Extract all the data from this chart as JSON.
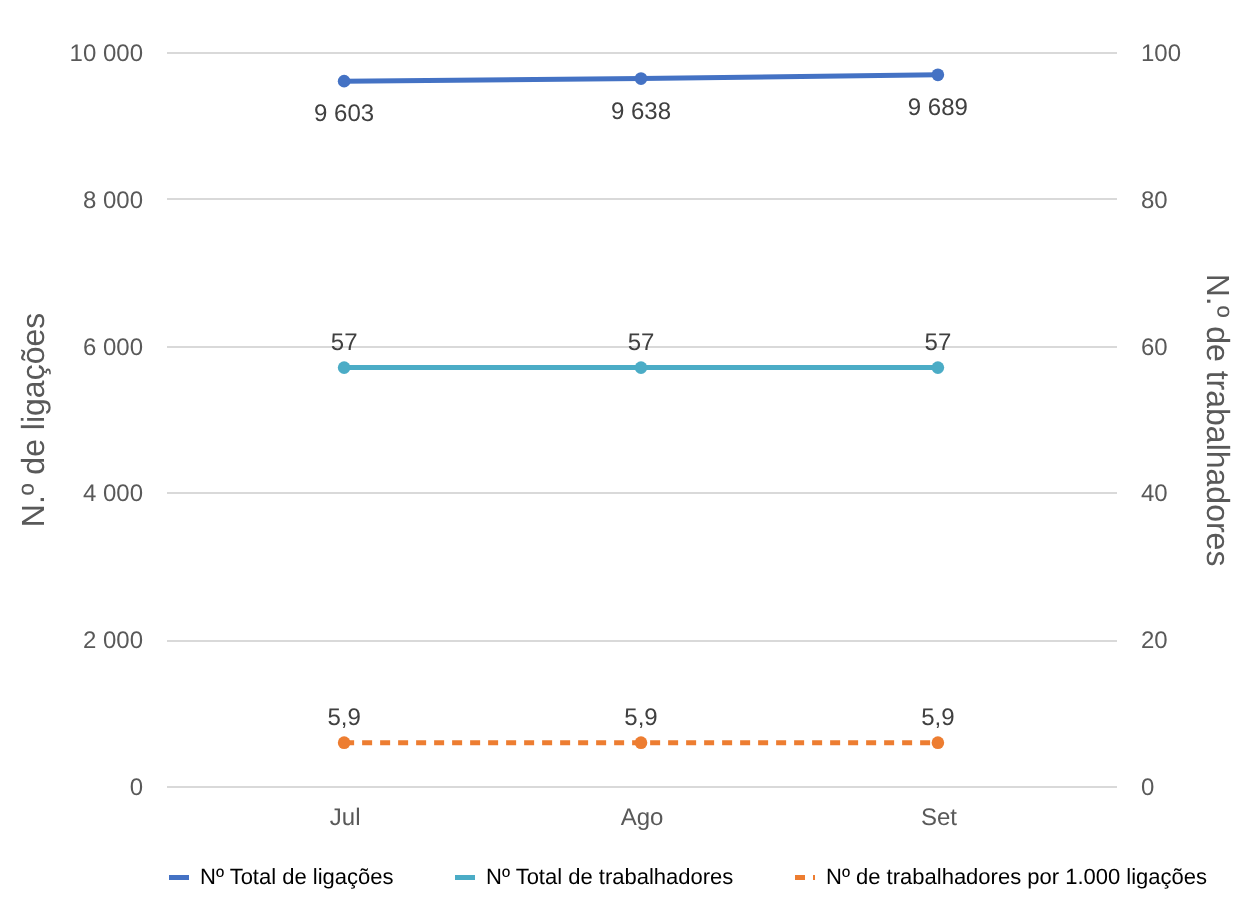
{
  "chart_data": {
    "type": "line",
    "categories": [
      "Jul",
      "Ago",
      "Set"
    ],
    "ylabel": "N.º de ligações",
    "y2label": "N.º de trabalhadores",
    "ylim": [
      0,
      10000
    ],
    "yticks": [
      0,
      {
        "value": 2000,
        "label": "2 000"
      },
      {
        "value": 4000,
        "label": "4 000"
      },
      {
        "value": 6000,
        "label": "6 000"
      },
      {
        "value": 8000,
        "label": "8 000"
      },
      {
        "value": 10000,
        "label": "10 000"
      }
    ],
    "y2lim": [
      0,
      100
    ],
    "y2ticks": [
      0,
      20,
      40,
      60,
      80,
      100
    ],
    "grid": "y",
    "legend": "bottom",
    "marker": "circle",
    "series": [
      {
        "name": "Nº Total de ligações",
        "color": "#4472c4",
        "values": [
          9603,
          9638,
          9689
        ],
        "value_labels": [
          "9 603",
          "9 638",
          "9 689"
        ],
        "line_style": "solid"
      },
      {
        "name": "Nº Total de trabalhadores",
        "color": "#4bacc6",
        "values": [
          57,
          57,
          57
        ],
        "value_labels": [
          "57",
          "57",
          "57"
        ],
        "axis": "y2",
        "line_style": "solid"
      },
      {
        "name": "Nº de trabalhadores por 1.000 ligações",
        "color": "#ed7d31",
        "values": [
          5.9,
          5.9,
          5.9
        ],
        "value_labels": [
          "5,9",
          "5,9",
          "5,9"
        ],
        "axis": "y2",
        "line_style": "dashed"
      }
    ]
  }
}
